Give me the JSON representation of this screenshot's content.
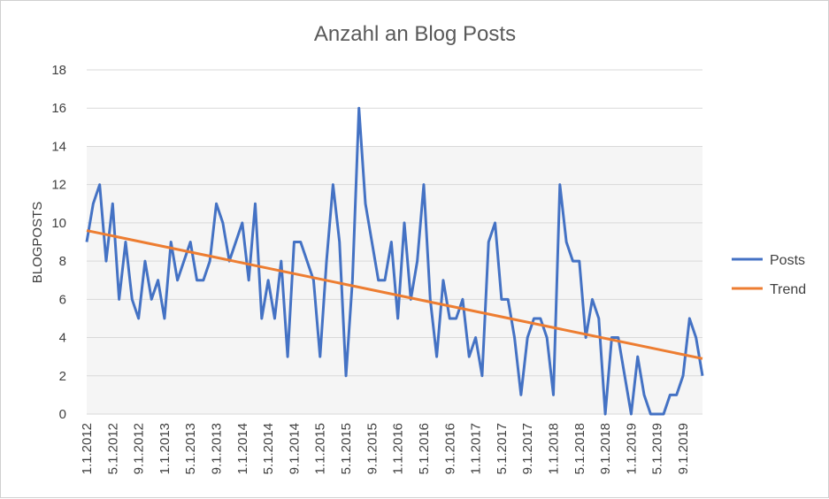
{
  "chart_data": {
    "type": "line",
    "title": "Anzahl an Blog Posts",
    "xlabel": "",
    "ylabel": "BLOGPOSTS",
    "ylim": [
      0,
      18
    ],
    "yticks": [
      0,
      2,
      4,
      6,
      8,
      10,
      12,
      14,
      16,
      18
    ],
    "grid": true,
    "legend_position": "right",
    "x_tick_labels": [
      "1.1.2012",
      "5.1.2012",
      "9.1.2012",
      "1.1.2013",
      "5.1.2013",
      "9.1.2013",
      "1.1.2014",
      "5.1.2014",
      "9.1.2014",
      "1.1.2015",
      "5.1.2015",
      "9.1.2015",
      "1.1.2016",
      "5.1.2016",
      "9.1.2016",
      "1.1.2017",
      "5.1.2017",
      "9.1.2017",
      "1.1.2018",
      "5.1.2018",
      "9.1.2018",
      "1.1.2019",
      "5.1.2019",
      "9.1.2019"
    ],
    "series": [
      {
        "name": "Posts",
        "color": "#4472c4",
        "values": [
          9,
          11,
          12,
          8,
          11,
          6,
          9,
          6,
          5,
          8,
          6,
          7,
          5,
          9,
          7,
          8,
          9,
          7,
          7,
          8,
          11,
          10,
          8,
          9,
          10,
          7,
          11,
          5,
          7,
          5,
          8,
          3,
          9,
          9,
          8,
          7,
          3,
          8,
          12,
          9,
          2,
          7,
          16,
          11,
          9,
          7,
          7,
          9,
          5,
          10,
          6,
          8,
          12,
          6,
          3,
          7,
          5,
          5,
          6,
          3,
          4,
          2,
          9,
          10,
          6,
          6,
          4,
          1,
          4,
          5,
          5,
          4,
          1,
          12,
          9,
          8,
          8,
          4,
          6,
          5,
          0,
          4,
          4,
          2,
          0,
          3,
          1,
          0,
          0,
          0,
          1,
          1,
          2,
          5,
          4,
          2
        ]
      },
      {
        "name": "Trend",
        "color": "#ed7d31",
        "values": [
          9.6,
          2.9
        ]
      }
    ]
  }
}
